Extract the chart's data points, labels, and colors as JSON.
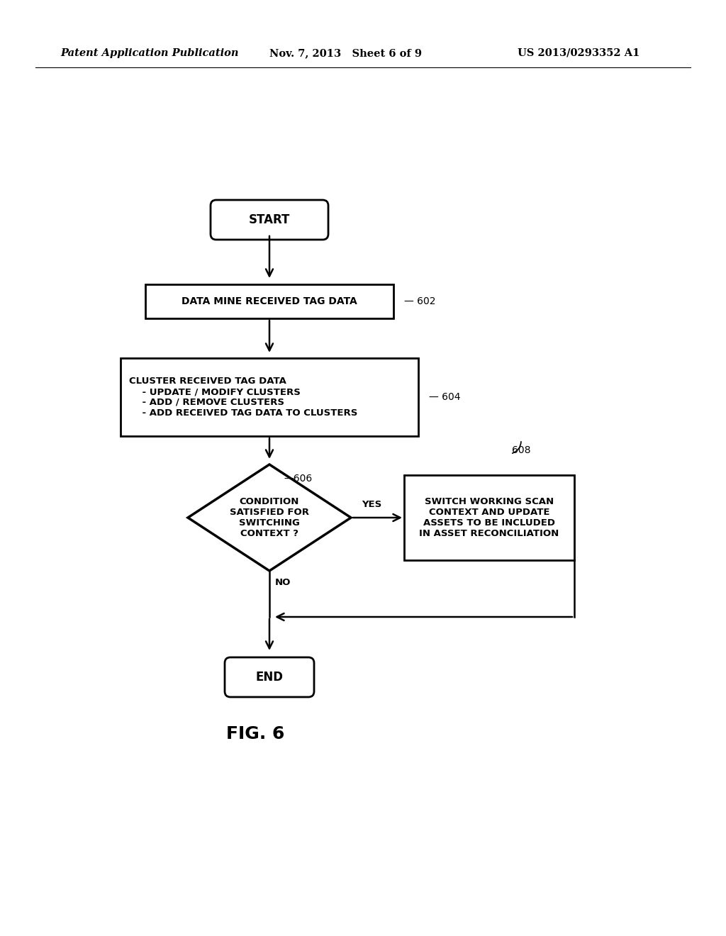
{
  "bg_color": "#ffffff",
  "header_left": "Patent Application Publication",
  "header_mid": "Nov. 7, 2013   Sheet 6 of 9",
  "header_right": "US 2013/0293352 A1",
  "fig_label": "FIG. 6",
  "start_text": "START",
  "box602_text": "DATA MINE RECEIVED TAG DATA",
  "box602_label": "602",
  "box604_text": "CLUSTER RECEIVED TAG DATA\n    - UPDATE / MODIFY CLUSTERS\n    - ADD / REMOVE CLUSTERS\n    - ADD RECEIVED TAG DATA TO CLUSTERS",
  "box604_label": "604",
  "diamond_text": "CONDITION\nSATISFIED FOR\nSWITCHING\nCONTEXT ?",
  "diamond_label": "606",
  "box608_text": "SWITCH WORKING SCAN\nCONTEXT AND UPDATE\nASSETS TO BE INCLUDED\nIN ASSET RECONCILIATION",
  "box608_label": "608",
  "end_text": "END",
  "yes_label": "YES",
  "no_label": "NO"
}
